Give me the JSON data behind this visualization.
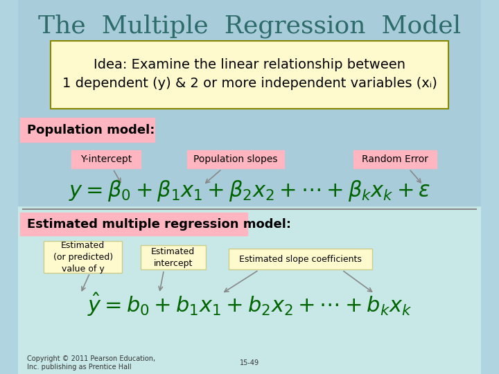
{
  "title": "The  Multiple  Regression  Model",
  "title_color": "#2E6B6B",
  "title_fontsize": 26,
  "idea_box_text": "Idea: Examine the linear relationship between\n1 dependent (y) & 2 or more independent variables (xᵢ)",
  "idea_box_bg": "#FFFACD",
  "idea_box_border": "#888800",
  "idea_text_color": "#000000",
  "idea_fontsize": 14,
  "pop_label": "Population model:",
  "pop_label_bg": "#FFB6C1",
  "pop_label_color": "#000000",
  "pop_label_fontsize": 13,
  "pop_formula": "y = β₀ + β₁x₁ + β₂x₂ + ⋯  + βₖxₖ + ε",
  "pop_formula_fontsize": 22,
  "pop_formula_color": "#006400",
  "ann_yintercept": "Y-intercept",
  "ann_popslopes": "Population slopes",
  "ann_randerr": "Random Error",
  "ann_bg": "#FFB6C1",
  "ann_fontsize": 10,
  "est_label": "Estimated multiple regression model:",
  "est_label_bg": "#FFB6C1",
  "est_label_color": "#000000",
  "est_label_fontsize": 13,
  "est_formula": "ŷ = b₀ + b₁x₁ + b₂x₂ + ⋯  + bₖxₖ",
  "est_formula_fontsize": 22,
  "est_formula_color": "#006400",
  "est_ann1": "Estimated\n(or predicted)\nvalue of y",
  "est_ann2": "Estimated\nintercept",
  "est_ann3": "Estimated slope coefficients",
  "est_ann_bg": "#FFFACD",
  "est_ann_fontsize": 9,
  "bg_top_color": "#B0D4E0",
  "bg_bottom_color": "#C8E8E8",
  "divider_color": "#888888",
  "copyright": "Copyright © 2011 Pearson Education,\nInc. publishing as Prentice Hall",
  "slide_number": "15-49",
  "footer_fontsize": 7,
  "arrow_color": "#888888"
}
